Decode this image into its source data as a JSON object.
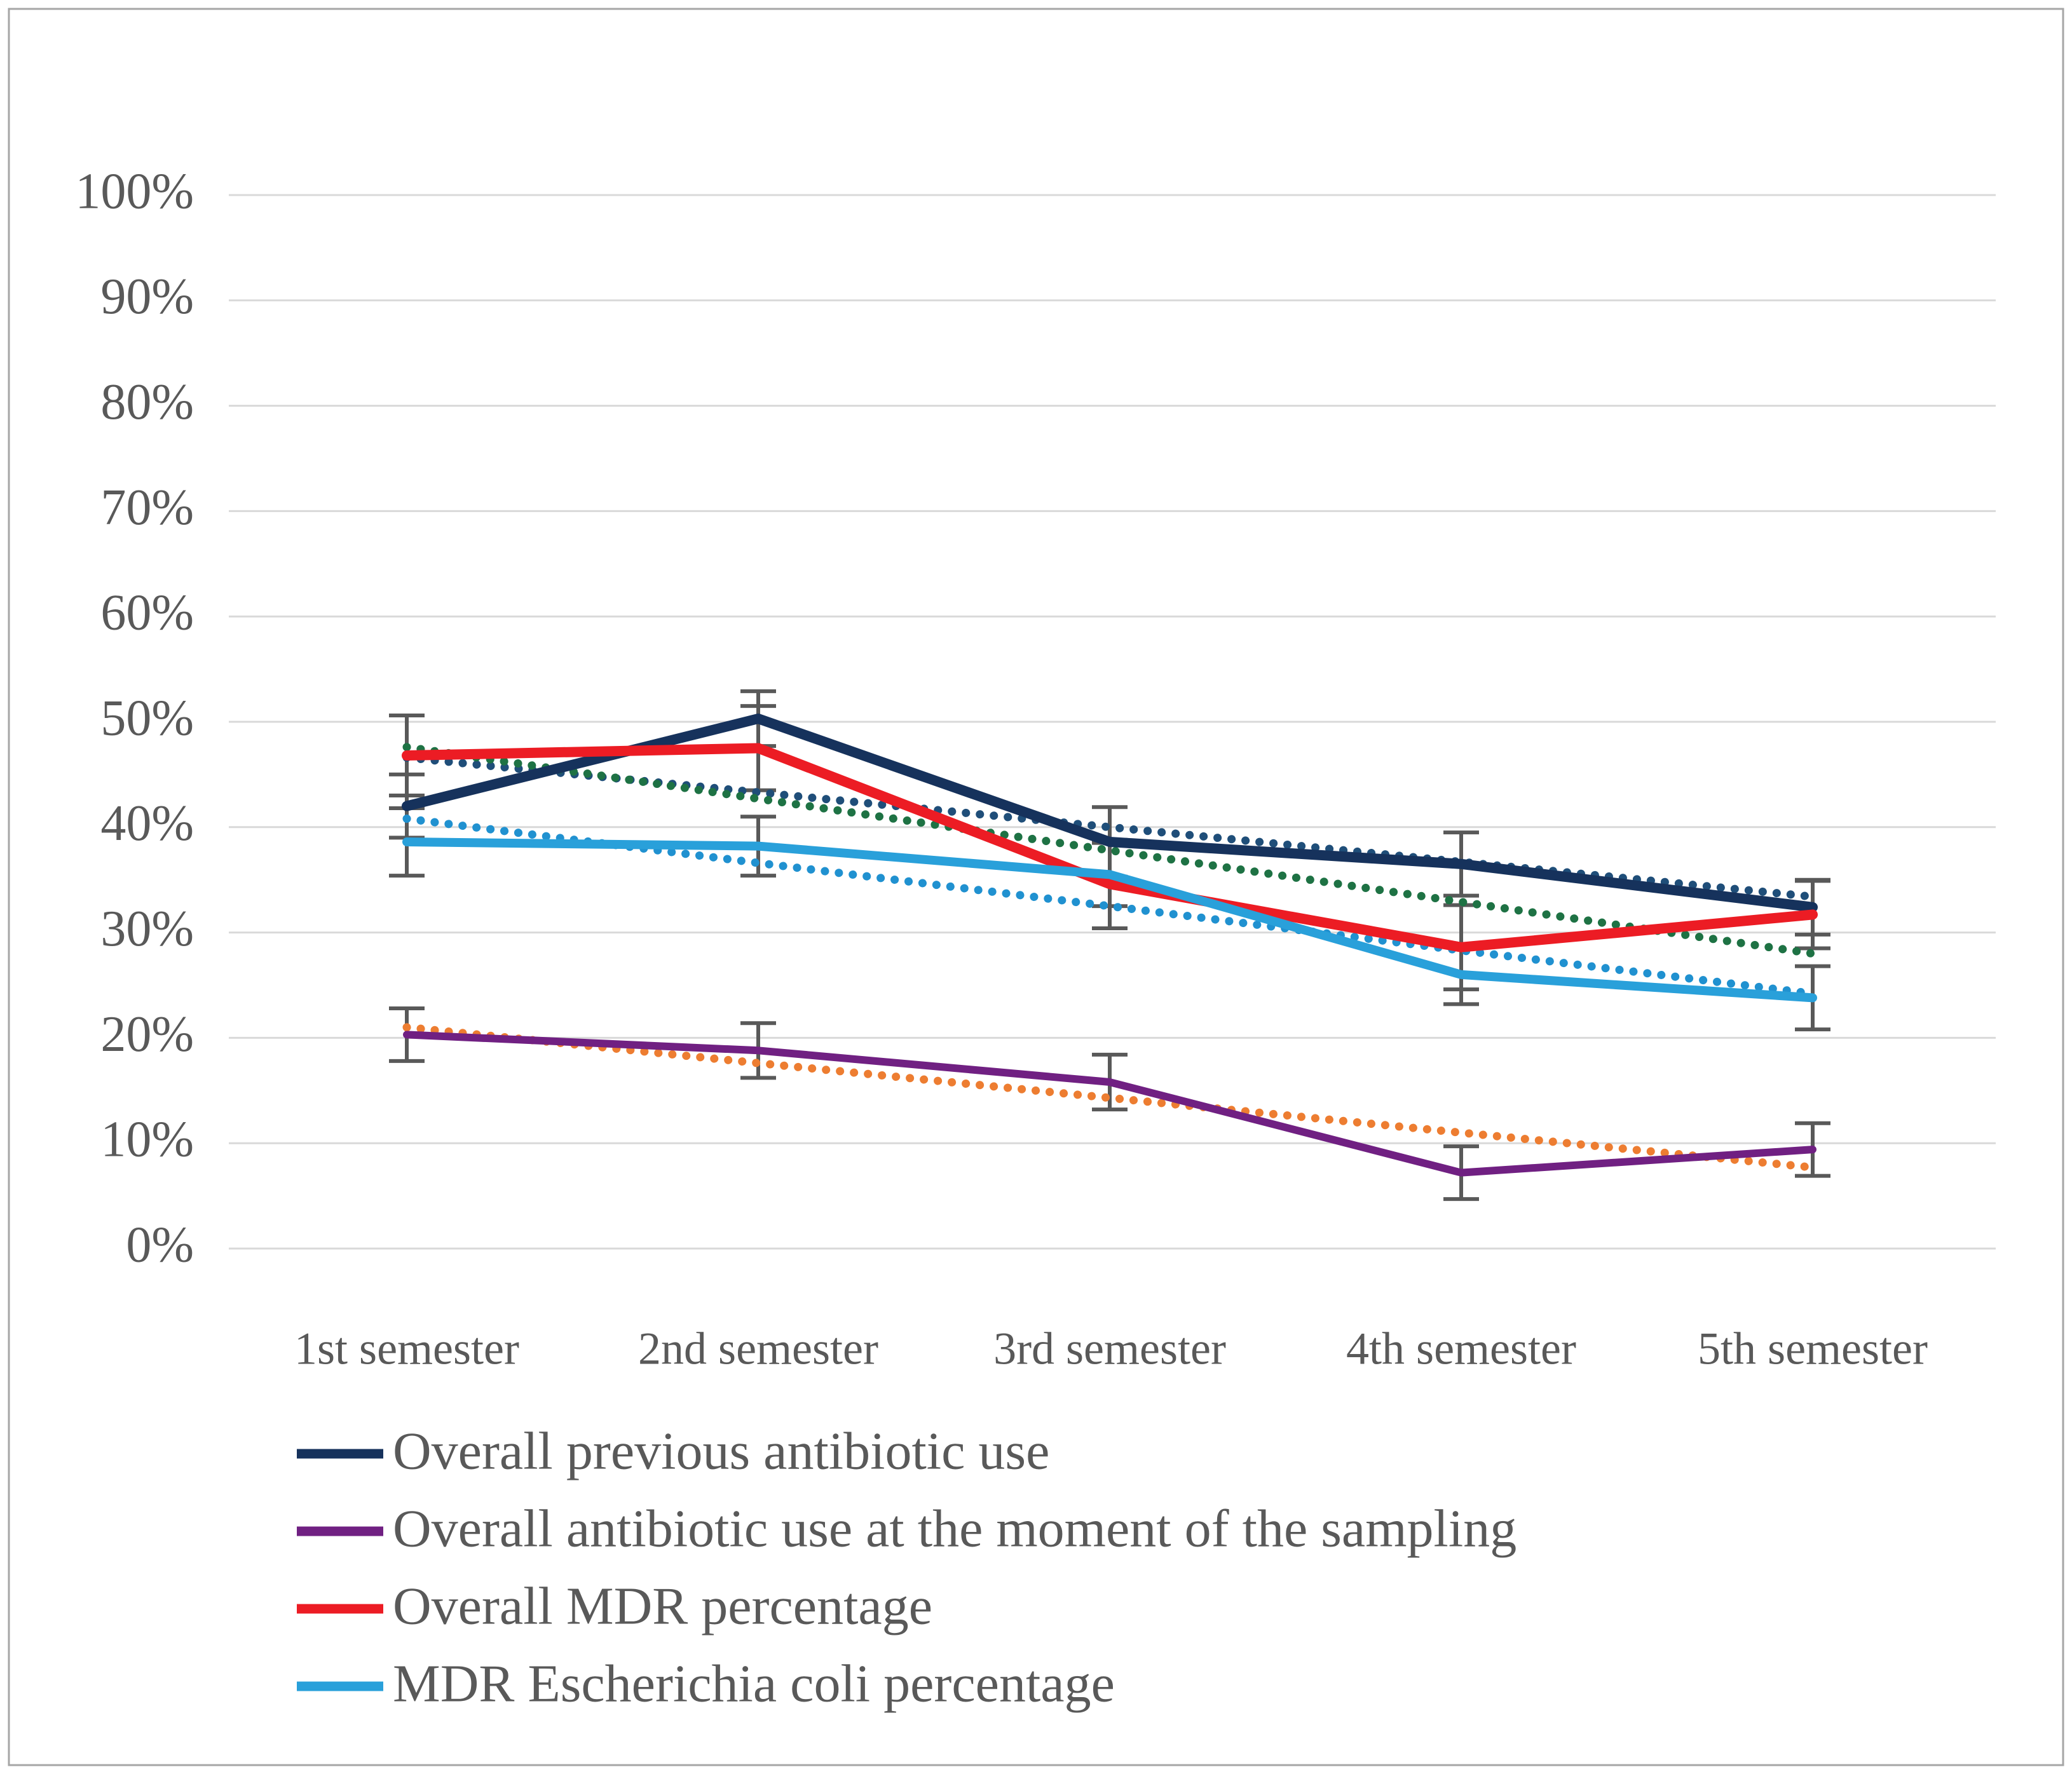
{
  "figure": {
    "background_color": "#FFFFFF",
    "border_color": "#A6A6A6",
    "text_color": "#595959",
    "aria_label": "Line chart of antibiotic use and MDR percentages across five semesters"
  },
  "chart_data": {
    "type": "line",
    "title": "",
    "xlabel": "",
    "ylabel": "",
    "categories": [
      "1st semester",
      "2nd semester",
      "3rd semester",
      "4th semester",
      "5th semester"
    ],
    "y_axis": {
      "min": 0,
      "max": 100,
      "step": 10,
      "format": "percent",
      "tick_labels": [
        "0%",
        "10%",
        "20%",
        "30%",
        "40%",
        "50%",
        "60%",
        "70%",
        "80%",
        "90%",
        "100%"
      ]
    },
    "grid": true,
    "gridline_color": "#D9D9D9",
    "error_bar_color": "#595959",
    "legend_position": "bottom-left",
    "series": [
      {
        "name": "Overall previous antibiotic use",
        "color": "#16325C",
        "line_style": "solid",
        "values": [
          42.0,
          50.3,
          38.6,
          36.5,
          32.4
        ],
        "error": [
          3.0,
          2.6,
          3.3,
          3.0,
          2.6
        ]
      },
      {
        "name": "Overall antibiotic use at the moment of the sampling",
        "color": "#702082",
        "line_style": "solid",
        "values": [
          20.3,
          18.8,
          15.8,
          7.2,
          9.4
        ],
        "error": [
          2.5,
          2.6,
          2.6,
          2.5,
          2.5
        ]
      },
      {
        "name": "Overall MDR percentage",
        "color": "#EC1C24",
        "line_style": "solid",
        "values": [
          46.8,
          47.5,
          34.6,
          28.6,
          31.7
        ],
        "error": [
          3.8,
          4.0,
          4.2,
          4.0,
          3.2
        ]
      },
      {
        "name": "MDR Escherichia coli percentage",
        "color": "#29A0DA",
        "line_style": "solid",
        "values": [
          38.6,
          38.2,
          35.5,
          26.0,
          23.8
        ],
        "error": [
          3.2,
          2.8,
          3.0,
          2.8,
          3.0
        ]
      }
    ],
    "trendlines": [
      {
        "for_series": "Overall previous antibiotic use",
        "color": "#1F4E79",
        "line_style": "dotted",
        "values": [
          46.6,
          43.3,
          40.0,
          36.7,
          33.4
        ]
      },
      {
        "for_series": "Overall MDR percentage",
        "color": "#1E7244",
        "line_style": "dotted",
        "values": [
          47.6,
          42.7,
          37.8,
          32.9,
          28.0
        ]
      },
      {
        "for_series": "MDR Escherichia coli percentage",
        "color": "#2091D0",
        "line_style": "dotted",
        "values": [
          40.8,
          36.6,
          32.5,
          28.3,
          24.2
        ]
      },
      {
        "for_series": "Overall antibiotic use at the moment of the sampling",
        "color": "#ED7D31",
        "line_style": "dotted",
        "values": [
          21.0,
          17.6,
          14.3,
          11.0,
          7.7
        ]
      }
    ]
  }
}
